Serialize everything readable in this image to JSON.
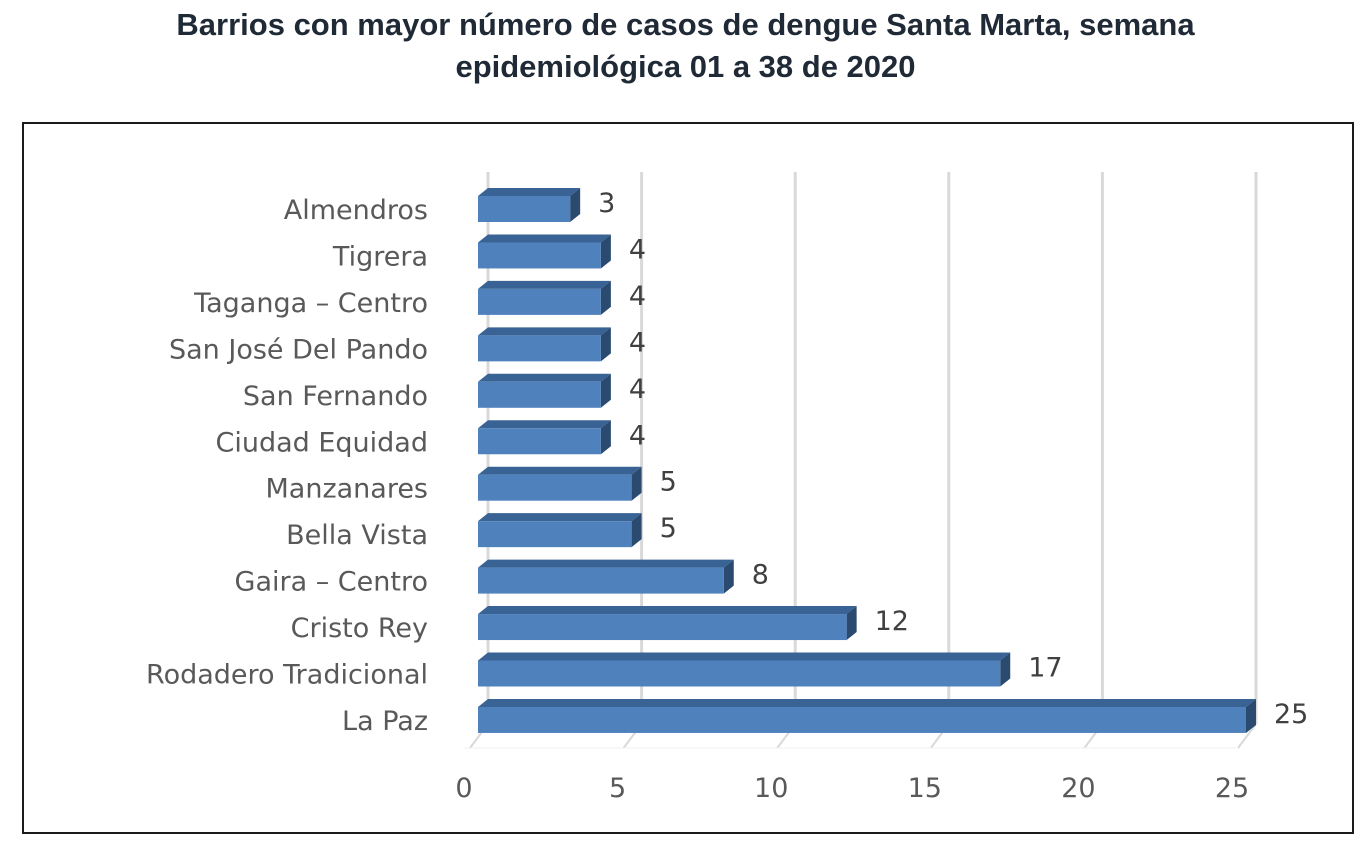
{
  "chart_data": {
    "type": "bar",
    "orientation": "horizontal",
    "title_line1": "Barrios con mayor número de casos de dengue Santa Marta, semana",
    "title_line2": "epidemiológica 01 a 38 de 2020",
    "categories": [
      "Almendros",
      "Tigrera",
      "Taganga – Centro",
      "San José Del Pando",
      "San Fernando",
      "Ciudad Equidad",
      "Manzanares",
      "Bella Vista",
      "Gaira – Centro",
      "Cristo Rey",
      "Rodadero Tradicional",
      "La Paz"
    ],
    "values": [
      3,
      4,
      4,
      4,
      4,
      4,
      5,
      5,
      8,
      12,
      17,
      25
    ],
    "xlim": [
      0,
      25
    ],
    "xticks": [
      "0",
      "5",
      "10",
      "15",
      "20",
      "25"
    ],
    "grid": true,
    "colors": {
      "bar_front": "#4f81bd",
      "bar_top": "#3a6395",
      "bar_side": "#2b4a70",
      "grid": "#d9d9d9"
    }
  }
}
